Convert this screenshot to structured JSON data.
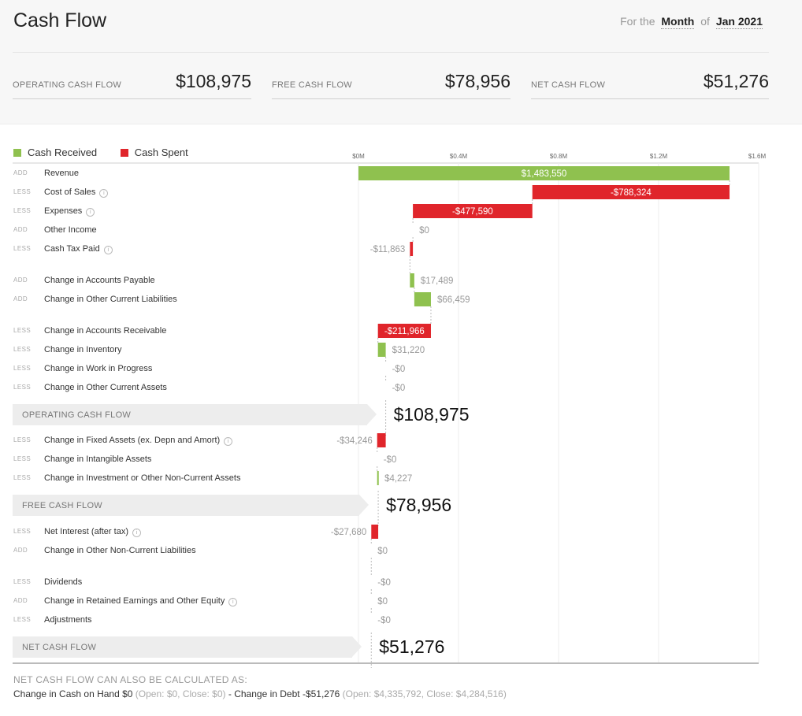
{
  "header": {
    "title": "Cash Flow",
    "period_prefix": "For the",
    "period_unit": "Month",
    "period_of": "of",
    "period_value": "Jan 2021"
  },
  "kpis": [
    {
      "label": "OPERATING CASH FLOW",
      "value": "$108,975"
    },
    {
      "label": "FREE CASH FLOW",
      "value": "$78,956"
    },
    {
      "label": "NET CASH FLOW",
      "value": "$51,276"
    }
  ],
  "legend": [
    {
      "label": "Cash Received",
      "color": "#8fc14f"
    },
    {
      "label": "Cash Spent",
      "color": "#e0252b"
    }
  ],
  "colors": {
    "received": "#8fc14f",
    "spent": "#e0252b"
  },
  "info_glyph": "i",
  "chart_data": {
    "type": "waterfall",
    "x_ticks": [
      "$0M",
      "$0.4M",
      "$0.8M",
      "$1.2M",
      "$1.6M"
    ],
    "xlim": [
      0,
      1600000
    ],
    "rows": [
      {
        "tag": "ADD",
        "name": "Revenue",
        "label": "$1,483,550",
        "start": 0,
        "end": 1483550,
        "kind": "received",
        "info": false
      },
      {
        "tag": "LESS",
        "name": "Cost of Sales",
        "label": "-$788,324",
        "start": 1483550,
        "end": 695226,
        "kind": "spent",
        "info": true
      },
      {
        "tag": "LESS",
        "name": "Expenses",
        "label": "-$477,590",
        "start": 695226,
        "end": 217636,
        "kind": "spent",
        "info": true
      },
      {
        "tag": "ADD",
        "name": "Other Income",
        "label": "$0",
        "start": 217636,
        "end": 217636,
        "kind": "received",
        "info": false
      },
      {
        "tag": "LESS",
        "name": "Cash Tax Paid",
        "label": "-$11,863",
        "start": 217636,
        "end": 205773,
        "kind": "spent",
        "info": true
      },
      {
        "tag": "ADD",
        "name": "Change in Accounts Payable",
        "label": "$17,489",
        "start": 205773,
        "end": 223262,
        "kind": "received",
        "info": false
      },
      {
        "tag": "ADD",
        "name": "Change in Other Current Liabilities",
        "label": "$66,459",
        "start": 223262,
        "end": 289721,
        "kind": "received",
        "info": false
      },
      {
        "tag": "LESS",
        "name": "Change in Accounts Receivable",
        "label": "-$211,966",
        "start": 289721,
        "end": 77755,
        "kind": "spent",
        "info": false
      },
      {
        "tag": "LESS",
        "name": "Change in Inventory",
        "label": "$31,220",
        "start": 77755,
        "end": 108975,
        "kind": "received",
        "info": false
      },
      {
        "tag": "LESS",
        "name": "Change in Work in Progress",
        "label": "-$0",
        "start": 108975,
        "end": 108975,
        "kind": "spent",
        "info": false
      },
      {
        "tag": "LESS",
        "name": "Change in Other Current Assets",
        "label": "-$0",
        "start": 108975,
        "end": 108975,
        "kind": "spent",
        "info": false
      },
      {
        "subtotal": true,
        "name": "OPERATING CASH FLOW",
        "label": "$108,975",
        "value": 108975
      },
      {
        "tag": "LESS",
        "name": "Change in Fixed Assets (ex. Depn and Amort)",
        "label": "-$34,246",
        "start": 108975,
        "end": 74729,
        "kind": "spent",
        "info": true
      },
      {
        "tag": "LESS",
        "name": "Change in Intangible Assets",
        "label": "-$0",
        "start": 74729,
        "end": 74729,
        "kind": "spent",
        "info": false
      },
      {
        "tag": "LESS",
        "name": "Change in Investment or Other Non-Current Assets",
        "label": "$4,227",
        "start": 74729,
        "end": 78956,
        "kind": "received",
        "info": false
      },
      {
        "subtotal": true,
        "name": "FREE CASH FLOW",
        "label": "$78,956",
        "value": 78956
      },
      {
        "tag": "LESS",
        "name": "Net Interest (after tax)",
        "label": "-$27,680",
        "start": 78956,
        "end": 51276,
        "kind": "spent",
        "info": true
      },
      {
        "tag": "ADD",
        "name": "Change in Other Non-Current Liabilities",
        "label": "$0",
        "start": 51276,
        "end": 51276,
        "kind": "received",
        "info": false
      },
      {
        "tag": "LESS",
        "name": "Dividends",
        "label": "-$0",
        "start": 51276,
        "end": 51276,
        "kind": "spent",
        "info": false
      },
      {
        "tag": "ADD",
        "name": "Change in Retained Earnings and Other Equity",
        "label": "$0",
        "start": 51276,
        "end": 51276,
        "kind": "received",
        "info": true
      },
      {
        "tag": "LESS",
        "name": "Adjustments",
        "label": "-$0",
        "start": 51276,
        "end": 51276,
        "kind": "spent",
        "info": false
      },
      {
        "subtotal": true,
        "name": "NET CASH FLOW",
        "label": "$51,276",
        "value": 51276
      }
    ]
  },
  "footer": {
    "heading": "NET CASH FLOW CAN ALSO BE CALCULATED AS:",
    "part1": "Change in Cash on Hand $0",
    "part1_detail": "(Open: $0, Close: $0)",
    "sep": "-",
    "part2": "Change in Debt -$51,276",
    "part2_detail": "(Open: $4,335,792, Close: $4,284,516)"
  }
}
